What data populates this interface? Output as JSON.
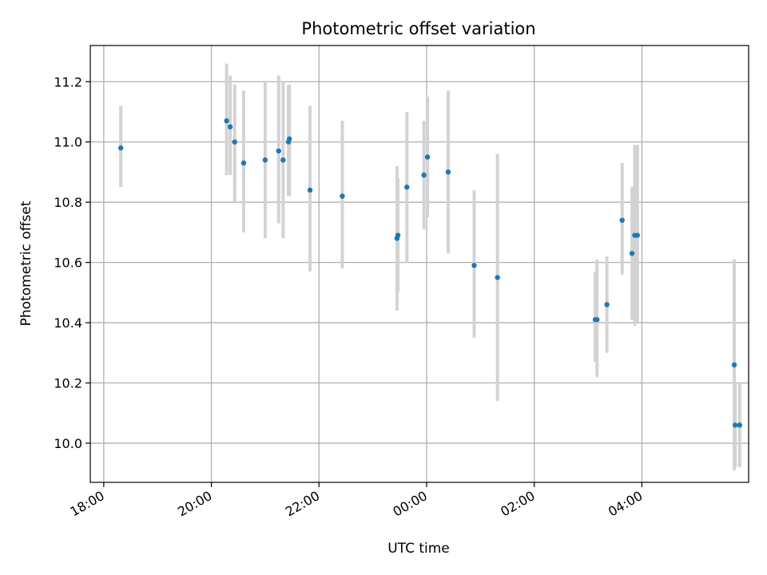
{
  "chart_data": {
    "type": "scatter",
    "title": "Photometric offset variation",
    "xlabel": "UTC time",
    "ylabel": "Photometric offset",
    "x_axis": {
      "kind": "time",
      "range_minutes": [
        -15,
        719
      ],
      "ticks": [
        {
          "minutes": 0,
          "label": "18:00"
        },
        {
          "minutes": 120,
          "label": "20:00"
        },
        {
          "minutes": 240,
          "label": "22:00"
        },
        {
          "minutes": 360,
          "label": "00:00"
        },
        {
          "minutes": 480,
          "label": "02:00"
        },
        {
          "minutes": 600,
          "label": "04:00"
        }
      ]
    },
    "y_axis": {
      "range": [
        9.87,
        11.32
      ],
      "ticks": [
        {
          "value": 10.0,
          "label": "10.0"
        },
        {
          "value": 10.2,
          "label": "10.2"
        },
        {
          "value": 10.4,
          "label": "10.4"
        },
        {
          "value": 10.6,
          "label": "10.6"
        },
        {
          "value": 10.8,
          "label": "10.8"
        },
        {
          "value": 11.0,
          "label": "11.0"
        },
        {
          "value": 11.2,
          "label": "11.2"
        }
      ]
    },
    "grid": true,
    "colors": {
      "point": "#1f77b4",
      "errorbar": "#d3d3d3",
      "grid": "#b0b0b0",
      "axis": "#000000"
    },
    "points": [
      {
        "t": 19,
        "y": 10.98,
        "lo": 10.85,
        "hi": 11.12
      },
      {
        "t": 137,
        "y": 11.07,
        "lo": 10.89,
        "hi": 11.26
      },
      {
        "t": 141,
        "y": 11.05,
        "lo": 10.89,
        "hi": 11.22
      },
      {
        "t": 146,
        "y": 11.0,
        "lo": 10.8,
        "hi": 11.19
      },
      {
        "t": 156,
        "y": 10.93,
        "lo": 10.7,
        "hi": 11.17
      },
      {
        "t": 180,
        "y": 10.94,
        "lo": 10.68,
        "hi": 11.2
      },
      {
        "t": 195,
        "y": 10.97,
        "lo": 10.73,
        "hi": 11.22
      },
      {
        "t": 200,
        "y": 10.94,
        "lo": 10.68,
        "hi": 11.2
      },
      {
        "t": 206,
        "y": 11.0,
        "lo": 10.82,
        "hi": 11.19
      },
      {
        "t": 207,
        "y": 11.01,
        "lo": 10.82,
        "hi": 11.19
      },
      {
        "t": 230,
        "y": 10.84,
        "lo": 10.57,
        "hi": 11.12
      },
      {
        "t": 266,
        "y": 10.82,
        "lo": 10.58,
        "hi": 11.07
      },
      {
        "t": 327,
        "y": 10.68,
        "lo": 10.44,
        "hi": 10.92
      },
      {
        "t": 328,
        "y": 10.69,
        "lo": 10.5,
        "hi": 10.88
      },
      {
        "t": 338,
        "y": 10.85,
        "lo": 10.6,
        "hi": 11.1
      },
      {
        "t": 357,
        "y": 10.89,
        "lo": 10.71,
        "hi": 11.07
      },
      {
        "t": 361,
        "y": 10.95,
        "lo": 10.75,
        "hi": 11.15
      },
      {
        "t": 384,
        "y": 10.9,
        "lo": 10.63,
        "hi": 11.17
      },
      {
        "t": 413,
        "y": 10.59,
        "lo": 10.35,
        "hi": 10.84
      },
      {
        "t": 439,
        "y": 10.55,
        "lo": 10.14,
        "hi": 10.96
      },
      {
        "t": 548,
        "y": 10.41,
        "lo": 10.27,
        "hi": 10.57
      },
      {
        "t": 550,
        "y": 10.41,
        "lo": 10.22,
        "hi": 10.61
      },
      {
        "t": 561,
        "y": 10.46,
        "lo": 10.3,
        "hi": 10.62
      },
      {
        "t": 578,
        "y": 10.74,
        "lo": 10.56,
        "hi": 10.93
      },
      {
        "t": 589,
        "y": 10.63,
        "lo": 10.41,
        "hi": 10.85
      },
      {
        "t": 592,
        "y": 10.69,
        "lo": 10.39,
        "hi": 10.99
      },
      {
        "t": 595,
        "y": 10.69,
        "lo": 10.4,
        "hi": 10.99
      },
      {
        "t": 703,
        "y": 10.26,
        "lo": 9.91,
        "hi": 10.61
      },
      {
        "t": 704,
        "y": 10.06,
        "lo": 9.92,
        "hi": 10.2
      },
      {
        "t": 709,
        "y": 10.06,
        "lo": 9.92,
        "hi": 10.2
      }
    ]
  }
}
